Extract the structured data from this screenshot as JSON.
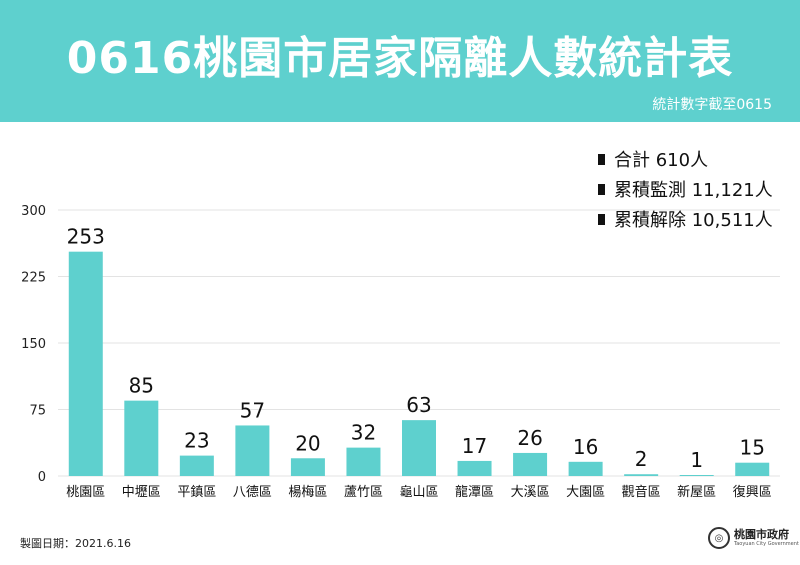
{
  "header": {
    "title": "0616桃園市居家隔離人數統計表",
    "note": "統計數字截至0615"
  },
  "summary": [
    {
      "label": "合計",
      "value": "610人"
    },
    {
      "label": "累積監測",
      "value": "11,121人"
    },
    {
      "label": "累積解除",
      "value": "10,511人"
    }
  ],
  "chart_data": {
    "type": "bar",
    "categories": [
      "桃園區",
      "中壢區",
      "平鎮區",
      "八德區",
      "楊梅區",
      "蘆竹區",
      "龜山區",
      "龍潭區",
      "大溪區",
      "大園區",
      "觀音區",
      "新屋區",
      "復興區"
    ],
    "values": [
      253,
      85,
      23,
      57,
      20,
      32,
      63,
      17,
      26,
      16,
      2,
      1,
      15
    ],
    "yticks": [
      0,
      75,
      150,
      225,
      300
    ],
    "ylim": [
      0,
      300
    ],
    "grid": true,
    "bar_color": "#5ed0ce"
  },
  "footer": {
    "date": "製圖日期：2021.6.16",
    "org": "桃園市政府",
    "org_en": "Taoyuan City Government"
  },
  "colors": {
    "banner": "#5ed0ce",
    "bar": "#5ed0ce",
    "grid": "#e3e3e3"
  }
}
